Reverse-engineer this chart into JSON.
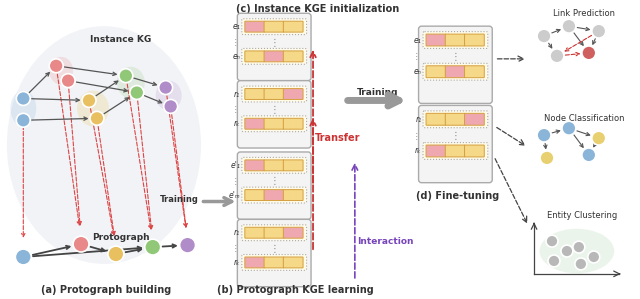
{
  "bg_color": "#ffffff",
  "title_c": "(c) Instance KGE initialization",
  "title_a": "(a) Protograph building",
  "title_b": "(b) Protograph KGE learning",
  "title_d": "(d) Fine-tuning",
  "label_lp": "Link Prediction",
  "label_nc": "Node Classification",
  "label_ec": "Entity Clustering",
  "label_transfer": "Transfer",
  "label_interaction": "Interaction",
  "label_training": "Training",
  "node_blue": "#8ab4d8",
  "node_red": "#e88888",
  "node_orange": "#e8c060",
  "node_green": "#90c878",
  "node_purple": "#b08cc8",
  "node_gray": "#c8c8c8",
  "node_yellow": "#e8d070",
  "embed_orange": "#f5d888",
  "embed_pink": "#f0a8b0",
  "embed_border": "#d4a040",
  "embed_bg": "#fffbe8",
  "group_bg": "#f4f4f4",
  "group_border": "#aaaaaa",
  "arrow_gray": "#999999",
  "arrow_red": "#cc3333",
  "arrow_purple": "#7744bb",
  "text_dark": "#333333"
}
